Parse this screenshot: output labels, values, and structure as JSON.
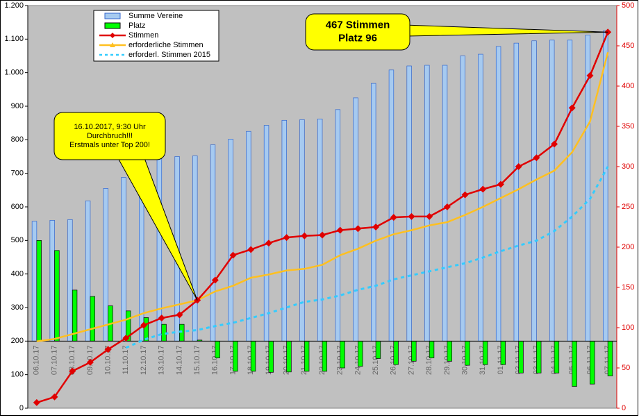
{
  "chart_data": {
    "type": "bar-line",
    "categories": [
      "06.10.17",
      "07.10.17",
      "08.10.17",
      "09.10.17",
      "10.10.17",
      "11.10.17",
      "12.10.17",
      "13.10.17",
      "14.10.17",
      "15.10.17",
      "16.10.17",
      "17.10.17",
      "18.10.17",
      "19.10.17",
      "20.10.17",
      "21.10.17",
      "22.10.17",
      "23.10.17",
      "24.10.17",
      "25.10.17",
      "26.10.17",
      "27.10.17",
      "28.10.17",
      "29.10.17",
      "30.10.17",
      "31.10.17",
      "01.11.17",
      "02.11.17",
      "03.11.17",
      "04.11.17",
      "05.11.17",
      "06.11.17",
      "07.11.17"
    ],
    "series": [
      {
        "name": "Summe Vereine",
        "kind": "bar",
        "axis": "y",
        "color": "#a6caf0",
        "values": [
          557,
          560,
          562,
          618,
          655,
          688,
          720,
          745,
          750,
          752,
          785,
          802,
          825,
          843,
          858,
          860,
          862,
          890,
          925,
          968,
          1008,
          1020,
          1022,
          1022,
          1050,
          1055,
          1078,
          1088,
          1095,
          1097,
          1097,
          1112,
          1125
        ]
      },
      {
        "name": "Platz",
        "kind": "bar",
        "axis": "y",
        "color": "#00ff00",
        "values": [
          500,
          470,
          352,
          333,
          305,
          290,
          270,
          250,
          250,
          203,
          150,
          110,
          110,
          107,
          108,
          110,
          110,
          120,
          125,
          148,
          130,
          140,
          150,
          140,
          128,
          130,
          130,
          105,
          105,
          105,
          65,
          72,
          96
        ]
      },
      {
        "name": "Stimmen",
        "kind": "line",
        "axis": "y2",
        "color": "#e00000",
        "values": [
          7,
          14,
          46,
          57,
          73,
          87,
          103,
          112,
          116,
          134,
          159,
          190,
          197,
          205,
          212,
          214,
          215,
          221,
          223,
          225,
          237,
          238,
          238,
          250,
          265,
          272,
          278,
          300,
          311,
          328,
          373,
          413,
          467
        ]
      },
      {
        "name": "erforderliche Stimmen",
        "kind": "line",
        "axis": "y2",
        "color": "#ffc020",
        "values": [
          83,
          86,
          92,
          98,
          104,
          110,
          118,
          124,
          129,
          134,
          145,
          152,
          162,
          166,
          171,
          173,
          178,
          190,
          198,
          208,
          216,
          221,
          227,
          231,
          240,
          250,
          261,
          272,
          284,
          295,
          318,
          356,
          442
        ]
      },
      {
        "name": "erforderl. Stimmen 2015",
        "kind": "line",
        "axis": "y2",
        "color": "#33ccff",
        "dashed": true,
        "values": [
          null,
          null,
          null,
          null,
          null,
          75,
          85,
          92,
          95,
          97,
          102,
          106,
          112,
          118,
          125,
          132,
          135,
          140,
          147,
          152,
          160,
          165,
          170,
          175,
          180,
          187,
          195,
          202,
          208,
          220,
          238,
          260,
          300
        ]
      }
    ],
    "ylim": [
      0,
      1200
    ],
    "yticks": [
      0,
      100,
      200,
      300,
      400,
      500,
      600,
      700,
      800,
      900,
      {
        "value": 1000,
        "label": "1.000"
      },
      {
        "value": 1100,
        "label": "1.100"
      },
      {
        "value": 1200,
        "label": "1.200"
      }
    ],
    "y2lim": [
      0,
      500
    ],
    "y2ticks": [
      0,
      50,
      100,
      150,
      200,
      250,
      300,
      350,
      400,
      450,
      500
    ],
    "x_axis_at": 200,
    "grid": false,
    "legend": "top-left",
    "annotations": [
      {
        "lines": [
          "16.10.2017, 9:30 Uhr",
          "Durchbruch!!!",
          "Erstmals unter Top 200!"
        ]
      },
      {
        "lines": [
          "467 Stimmen",
          "Platz 96"
        ]
      }
    ]
  }
}
